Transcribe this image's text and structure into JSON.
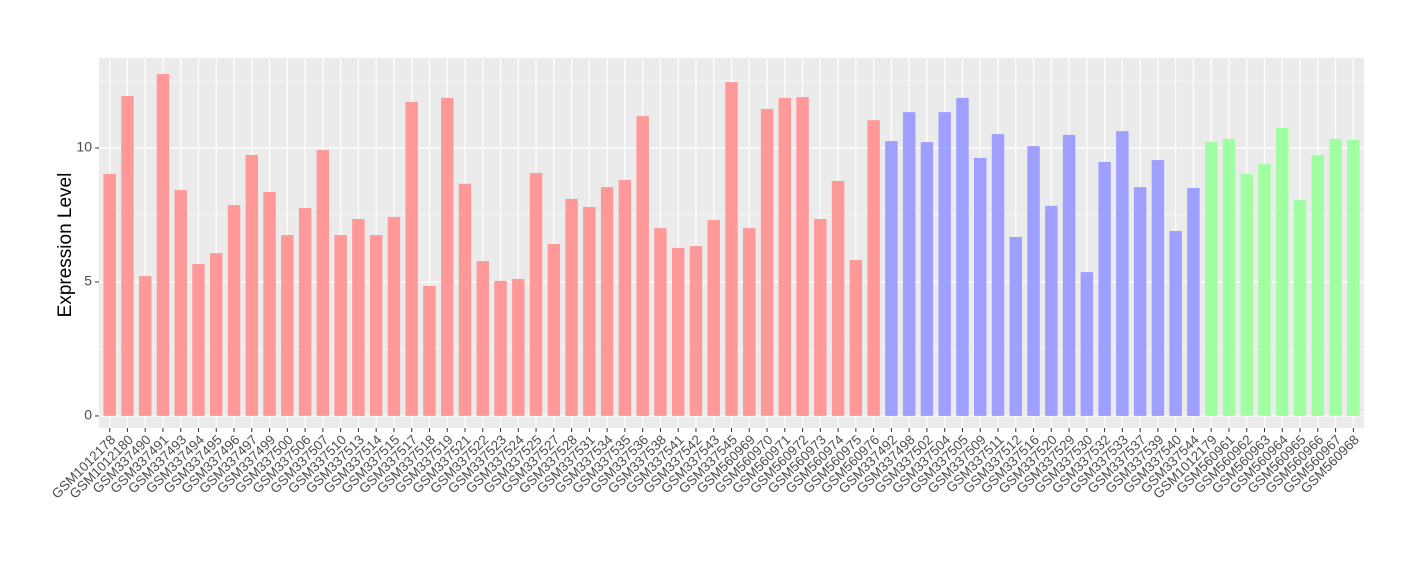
{
  "chart_data": {
    "type": "bar",
    "y_label": "Expression Level",
    "categories": [
      "GSM1012178",
      "GSM1012180",
      "GSM337490",
      "GSM337491",
      "GSM337493",
      "GSM337494",
      "GSM337495",
      "GSM337496",
      "GSM337497",
      "GSM337499",
      "GSM337500",
      "GSM337506",
      "GSM337507",
      "GSM337510",
      "GSM337513",
      "GSM337514",
      "GSM337515",
      "GSM337517",
      "GSM337518",
      "GSM337519",
      "GSM337521",
      "GSM337522",
      "GSM337523",
      "GSM337524",
      "GSM337525",
      "GSM337527",
      "GSM337528",
      "GSM337531",
      "GSM337534",
      "GSM337535",
      "GSM337536",
      "GSM337538",
      "GSM337541",
      "GSM337542",
      "GSM337543",
      "GSM337545",
      "GSM560969",
      "GSM560970",
      "GSM560971",
      "GSM560972",
      "GSM560973",
      "GSM560974",
      "GSM560975",
      "GSM560976",
      "GSM337492",
      "GSM337498",
      "GSM337502",
      "GSM337504",
      "GSM337505",
      "GSM337509",
      "GSM337511",
      "GSM337512",
      "GSM337516",
      "GSM337520",
      "GSM337529",
      "GSM337530",
      "GSM337532",
      "GSM337533",
      "GSM337537",
      "GSM337539",
      "GSM337540",
      "GSM337544",
      "GSM1012179",
      "GSM560961",
      "GSM560962",
      "GSM560963",
      "GSM560964",
      "GSM560965",
      "GSM560966",
      "GSM560967",
      "GSM560968"
    ],
    "values": [
      9.03,
      11.94,
      5.22,
      12.76,
      8.43,
      5.67,
      6.08,
      7.87,
      9.74,
      8.36,
      6.75,
      7.76,
      9.93,
      6.75,
      7.35,
      6.75,
      7.43,
      11.72,
      4.85,
      11.87,
      8.66,
      5.78,
      5.04,
      5.11,
      9.07,
      6.42,
      8.1,
      7.8,
      8.54,
      8.81,
      11.19,
      7.01,
      6.27,
      6.34,
      7.31,
      12.46,
      7.01,
      11.46,
      11.87,
      11.9,
      7.35,
      8.77,
      5.82,
      11.04,
      10.26,
      11.34,
      10.22,
      11.34,
      11.87,
      9.63,
      10.52,
      6.68,
      10.07,
      7.84,
      10.49,
      5.37,
      9.48,
      10.63,
      8.54,
      9.55,
      6.9,
      8.51,
      10.22,
      10.34,
      9.03,
      9.4,
      10.75,
      8.06,
      9.74,
      10.34,
      10.3
    ],
    "colors": [
      "#ff9999",
      "#ff9999",
      "#ff9999",
      "#ff9999",
      "#ff9999",
      "#ff9999",
      "#ff9999",
      "#ff9999",
      "#ff9999",
      "#ff9999",
      "#ff9999",
      "#ff9999",
      "#ff9999",
      "#ff9999",
      "#ff9999",
      "#ff9999",
      "#ff9999",
      "#ff9999",
      "#ff9999",
      "#ff9999",
      "#ff9999",
      "#ff9999",
      "#ff9999",
      "#ff9999",
      "#ff9999",
      "#ff9999",
      "#ff9999",
      "#ff9999",
      "#ff9999",
      "#ff9999",
      "#ff9999",
      "#ff9999",
      "#ff9999",
      "#ff9999",
      "#ff9999",
      "#ff9999",
      "#ff9999",
      "#ff9999",
      "#ff9999",
      "#ff9999",
      "#ff9999",
      "#ff9999",
      "#ff9999",
      "#ff9999",
      "#9f9fff",
      "#9f9fff",
      "#9f9fff",
      "#9f9fff",
      "#9f9fff",
      "#9f9fff",
      "#9f9fff",
      "#9f9fff",
      "#9f9fff",
      "#9f9fff",
      "#9f9fff",
      "#9f9fff",
      "#9f9fff",
      "#9f9fff",
      "#9f9fff",
      "#9f9fff",
      "#9f9fff",
      "#9f9fff",
      "#a0ffa0",
      "#a0ffa0",
      "#a0ffa0",
      "#a0ffa0",
      "#a0ffa0",
      "#a0ffa0",
      "#a0ffa0",
      "#a0ffa0",
      "#a0ffa0"
    ],
    "ylim": [
      -0.45,
      13.36
    ],
    "yticks": [
      0,
      5,
      10
    ],
    "grid": true
  }
}
